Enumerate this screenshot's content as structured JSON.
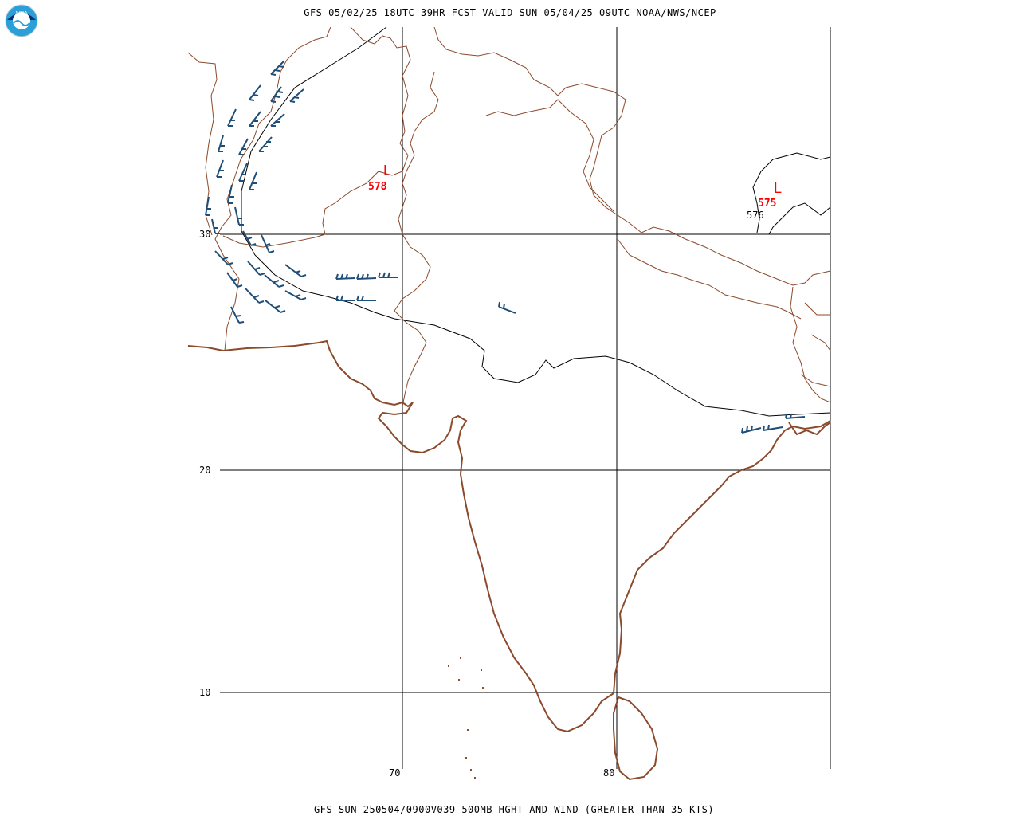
{
  "header": {
    "title": "GFS 05/02/25 18UTC 39HR FCST VALID SUN 05/04/25 09UTC NOAA/NWS/NCEP",
    "logo_text": "NOAA"
  },
  "footer": {
    "caption": "GFS SUN 250504/0900V039 500MB HGHT AND WIND (GREATER THAN 35 KTS)"
  },
  "grid": {
    "lat_labels": [
      "30",
      "20",
      "10"
    ],
    "lon_labels": [
      "70",
      "80"
    ]
  },
  "lows": [
    {
      "marker": "L",
      "value": "578"
    },
    {
      "marker": "L",
      "value": "575"
    }
  ],
  "contour_labels": [
    "576"
  ],
  "colors": {
    "coastline": "#8b4a2b",
    "border": "#8b4a2b",
    "wind_barb": "#1f4e79",
    "low": "#ff0000",
    "contour": "#000000"
  }
}
